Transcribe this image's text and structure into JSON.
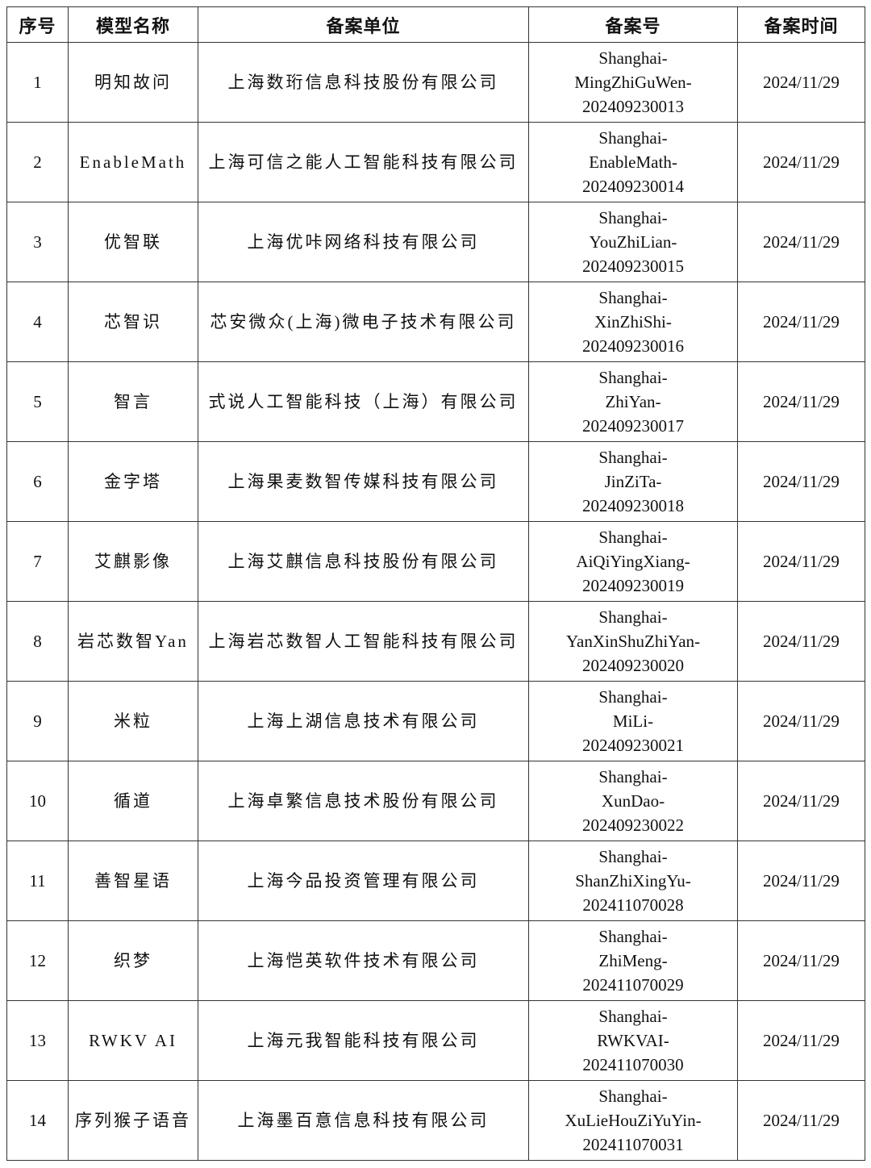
{
  "table": {
    "headers": [
      "序号",
      "模型名称",
      "备案单位",
      "备案号",
      "备案时间"
    ],
    "rows": [
      {
        "no": "1",
        "model": "明知故问",
        "company": "上海数珩信息科技股份有限公司",
        "reg": [
          "Shanghai-",
          "MingZhiGuWen-",
          "202409230013"
        ],
        "date": "2024/11/29"
      },
      {
        "no": "2",
        "model": "EnableMath",
        "company": "上海可信之能人工智能科技有限公司",
        "reg": [
          "Shanghai-",
          "EnableMath-",
          "202409230014"
        ],
        "date": "2024/11/29"
      },
      {
        "no": "3",
        "model": "优智联",
        "company": "上海优咔网络科技有限公司",
        "reg": [
          "Shanghai-",
          "YouZhiLian-",
          "202409230015"
        ],
        "date": "2024/11/29"
      },
      {
        "no": "4",
        "model": "芯智识",
        "company": "芯安微众(上海)微电子技术有限公司",
        "reg": [
          "Shanghai-",
          "XinZhiShi-",
          "202409230016"
        ],
        "date": "2024/11/29"
      },
      {
        "no": "5",
        "model": "智言",
        "company": "式说人工智能科技（上海）有限公司",
        "reg": [
          "Shanghai-",
          "ZhiYan-",
          "202409230017"
        ],
        "date": "2024/11/29"
      },
      {
        "no": "6",
        "model": "金字塔",
        "company": "上海果麦数智传媒科技有限公司",
        "reg": [
          "Shanghai-",
          "JinZiTa-",
          "202409230018"
        ],
        "date": "2024/11/29"
      },
      {
        "no": "7",
        "model": "艾麒影像",
        "company": "上海艾麒信息科技股份有限公司",
        "reg": [
          "Shanghai-",
          "AiQiYingXiang-",
          "202409230019"
        ],
        "date": "2024/11/29"
      },
      {
        "no": "8",
        "model": "岩芯数智Yan",
        "company": "上海岩芯数智人工智能科技有限公司",
        "reg": [
          "Shanghai-",
          "YanXinShuZhiYan-",
          "202409230020"
        ],
        "date": "2024/11/29"
      },
      {
        "no": "9",
        "model": "米粒",
        "company": "上海上湖信息技术有限公司",
        "reg": [
          "Shanghai-",
          "MiLi-",
          "202409230021"
        ],
        "date": "2024/11/29"
      },
      {
        "no": "10",
        "model": "循道",
        "company": "上海卓繁信息技术股份有限公司",
        "reg": [
          "Shanghai-",
          "XunDao-",
          "202409230022"
        ],
        "date": "2024/11/29"
      },
      {
        "no": "11",
        "model": "善智星语",
        "company": "上海今品投资管理有限公司",
        "reg": [
          "Shanghai-",
          "ShanZhiXingYu-",
          "202411070028"
        ],
        "date": "2024/11/29"
      },
      {
        "no": "12",
        "model": "织梦",
        "company": "上海恺英软件技术有限公司",
        "reg": [
          "Shanghai-",
          "ZhiMeng-",
          "202411070029"
        ],
        "date": "2024/11/29"
      },
      {
        "no": "13",
        "model": "RWKV AI",
        "company": "上海元我智能科技有限公司",
        "reg": [
          "Shanghai-",
          "RWKVAI-",
          "202411070030"
        ],
        "date": "2024/11/29"
      },
      {
        "no": "14",
        "model": "序列猴子语音",
        "company": "上海墨百意信息科技有限公司",
        "reg": [
          "Shanghai-",
          "XuLieHouZiYuYin-",
          "202411070031"
        ],
        "date": "2024/11/29"
      }
    ]
  }
}
